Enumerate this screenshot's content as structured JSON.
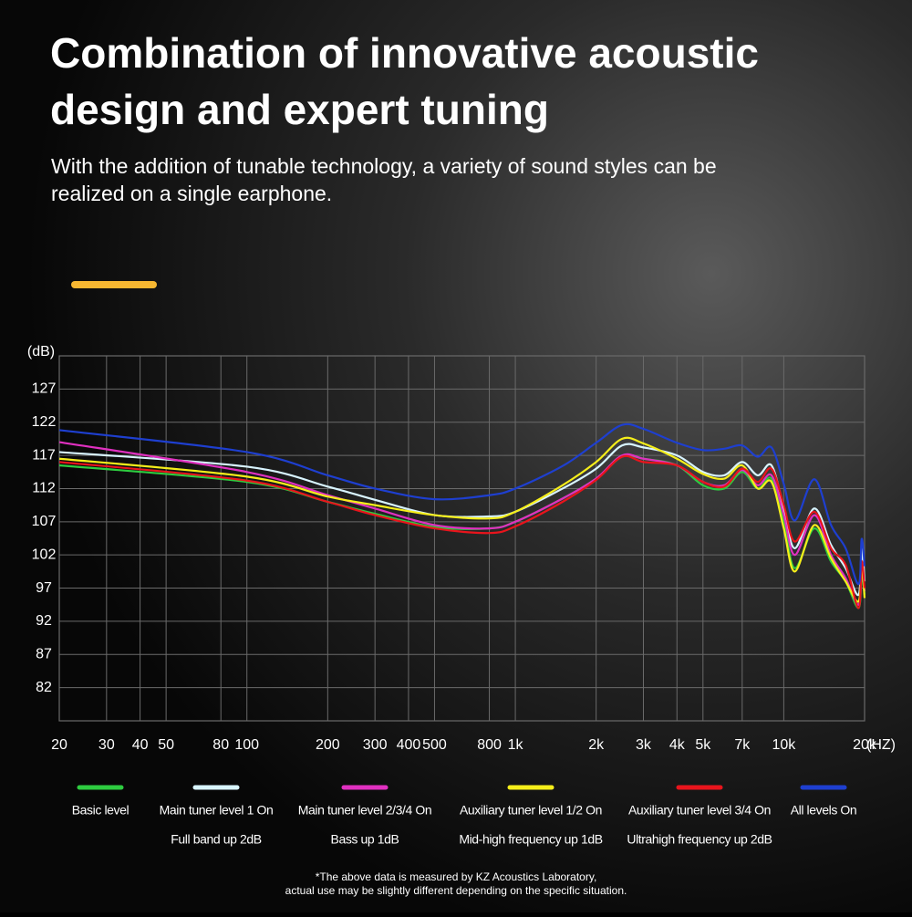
{
  "chart_data": {
    "type": "line",
    "title": [
      "Combination of innovative acoustic",
      "design and expert tuning"
    ],
    "subtitle": [
      "With the addition of tunable technology, a variety of sound styles can be",
      "realized on a single earphone."
    ],
    "ylabel": "(dB)",
    "xlabel": "(HZ)",
    "log_x": true,
    "grid": true,
    "xlim": [
      20,
      20000
    ],
    "ylim": [
      77,
      132
    ],
    "yticks": [
      127,
      122,
      117,
      112,
      107,
      102,
      97,
      92,
      87,
      82
    ],
    "xticks": [
      20,
      30,
      40,
      50,
      80,
      100,
      200,
      300,
      400,
      500,
      800,
      {
        "value": 1000,
        "label": "1k"
      },
      {
        "value": 2000,
        "label": "2k"
      },
      {
        "value": 3000,
        "label": "3k"
      },
      {
        "value": 4000,
        "label": "4k"
      },
      {
        "value": 5000,
        "label": "5k"
      },
      {
        "value": 7000,
        "label": "7k"
      },
      {
        "value": 10000,
        "label": "10k"
      },
      {
        "value": 20000,
        "label": "20k"
      }
    ],
    "x": [
      20,
      100,
      200,
      300,
      500,
      800,
      1000,
      1500,
      2000,
      2500,
      3000,
      4000,
      5000,
      6000,
      7000,
      8000,
      9000,
      10000,
      11000,
      13000,
      15000,
      17000,
      19000,
      19500,
      20000
    ],
    "series": [
      {
        "name": "Basic level",
        "color": "#2ecc40",
        "values": [
          115.5,
          113,
          110,
          108.2,
          106.2,
          106,
          107,
          110.5,
          113.5,
          116.8,
          116.5,
          115.5,
          112.5,
          112,
          114.5,
          112,
          113.5,
          107,
          100,
          106,
          101,
          98,
          94,
          99,
          96
        ]
      },
      {
        "name": "Main tuner level 1 On",
        "note": "Full band up 2dB",
        "color": "#d8f4ff",
        "values": [
          117.5,
          115.3,
          112.3,
          110.3,
          108,
          107.8,
          108.5,
          112,
          115,
          118.5,
          118.2,
          117,
          114.5,
          114,
          116,
          114,
          115.5,
          109,
          103,
          109,
          103.5,
          100,
          96,
          103,
          98
        ]
      },
      {
        "name": "Main tuner level 2/3/4 On",
        "note": "Bass up 1dB",
        "color": "#e030c0",
        "values": [
          119,
          114.5,
          111,
          109,
          106.5,
          106,
          107,
          110.5,
          113.5,
          117,
          116.5,
          115.5,
          113,
          112.5,
          114.8,
          112.5,
          114,
          108,
          102,
          108,
          102,
          98.5,
          94.5,
          100,
          96.5
        ]
      },
      {
        "name": "Auxiliary tuner level 1/2 On",
        "note": "Mid-high frequency up 1dB",
        "color": "#f5ee1a",
        "values": [
          116.5,
          113.8,
          110.8,
          109.5,
          108,
          107.5,
          108.5,
          112.5,
          116,
          119.5,
          118.8,
          116.5,
          114.2,
          113.5,
          115.5,
          112,
          113,
          106,
          99.5,
          106.5,
          101.5,
          98,
          95,
          100.5,
          95.5
        ]
      },
      {
        "name": "Auxiliary tuner level 3/4 On",
        "note": "Ultrahigh frequency up 2dB",
        "color": "#e8141c",
        "values": [
          116,
          113.2,
          110,
          108,
          106,
          105.3,
          106.3,
          110,
          113.3,
          116.8,
          116,
          115.5,
          113,
          112.3,
          115,
          113,
          115,
          109.5,
          104,
          108.5,
          103,
          100.5,
          94,
          101,
          97
        ]
      },
      {
        "name": "All levels On",
        "color": "#1e3fd0",
        "values": [
          120.8,
          117.5,
          114,
          112,
          110.4,
          111,
          112,
          115.4,
          118.9,
          121.6,
          121,
          118.9,
          117.8,
          118,
          118.5,
          116.8,
          118.2,
          112.7,
          107.2,
          113.4,
          106.5,
          103,
          97.6,
          104.4,
          100.3
        ]
      }
    ],
    "footnote": [
      "*The above data is measured by KZ Acoustics Laboratory,",
      "actual use may be slightly different depending on the specific situation."
    ]
  }
}
